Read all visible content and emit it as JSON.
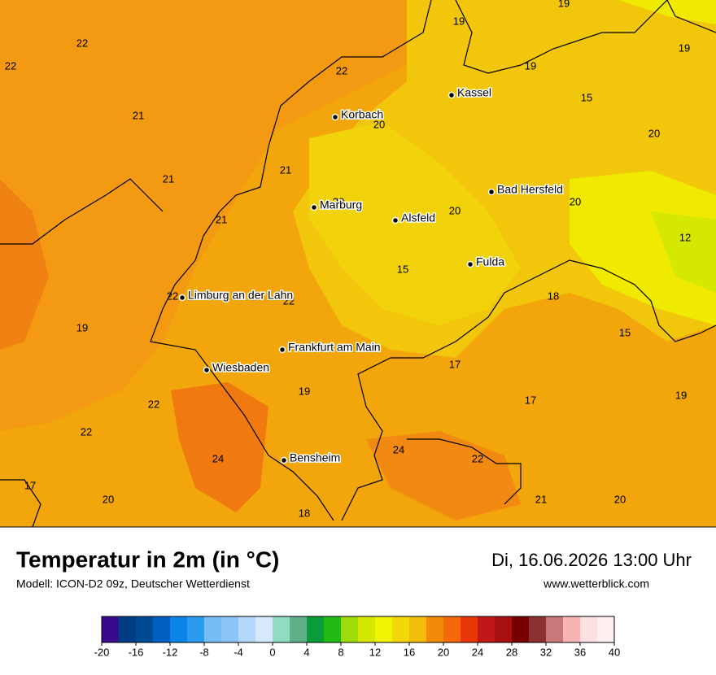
{
  "title": "Temperatur in 2m (in °C)",
  "subtitle": "Modell: ICON-D2 09z, Deutscher Wetterdienst",
  "date": "Di, 16.06.2026 13:00 Uhr",
  "website": "www.wetterblick.com",
  "cities": [
    "Kassel",
    "Korbach",
    "Bad Hersfeld",
    "Marburg",
    "Alsfeld",
    "Fulda",
    "Limburg an der Lahn",
    "Frankfurt am Main",
    "Wiesbaden",
    "Bensheim"
  ],
  "temperatures": [
    19,
    19,
    22,
    19,
    22,
    22,
    19,
    15,
    21,
    20,
    20,
    21,
    21,
    20,
    20,
    20,
    21,
    12,
    15,
    18,
    22,
    22,
    19,
    15,
    17,
    19,
    17,
    19,
    22,
    22,
    24,
    22,
    24,
    17,
    20,
    21,
    20,
    18
  ],
  "colorbar": {
    "ticks": [
      -20,
      -16,
      -12,
      -8,
      -4,
      0,
      4,
      8,
      12,
      16,
      20,
      24,
      28,
      32,
      36,
      40
    ],
    "colors": [
      "#3a0a8c",
      "#003c84",
      "#004a94",
      "#0060c0",
      "#0a84e8",
      "#2a9cf0",
      "#78bcf5",
      "#8ac4f8",
      "#b4d8fb",
      "#d6e8fb",
      "#90dcc0",
      "#60b08a",
      "#089c3a",
      "#22bb16",
      "#9fdb0a",
      "#d4e800",
      "#f0f400",
      "#f2d80a",
      "#f2bd0a",
      "#f28a0a",
      "#f46a0a",
      "#e8380a",
      "#c01818",
      "#a81010",
      "#780000",
      "#8c3030",
      "#c87878",
      "#f8b4b4",
      "#fde0e0",
      "#fff0f0"
    ]
  }
}
